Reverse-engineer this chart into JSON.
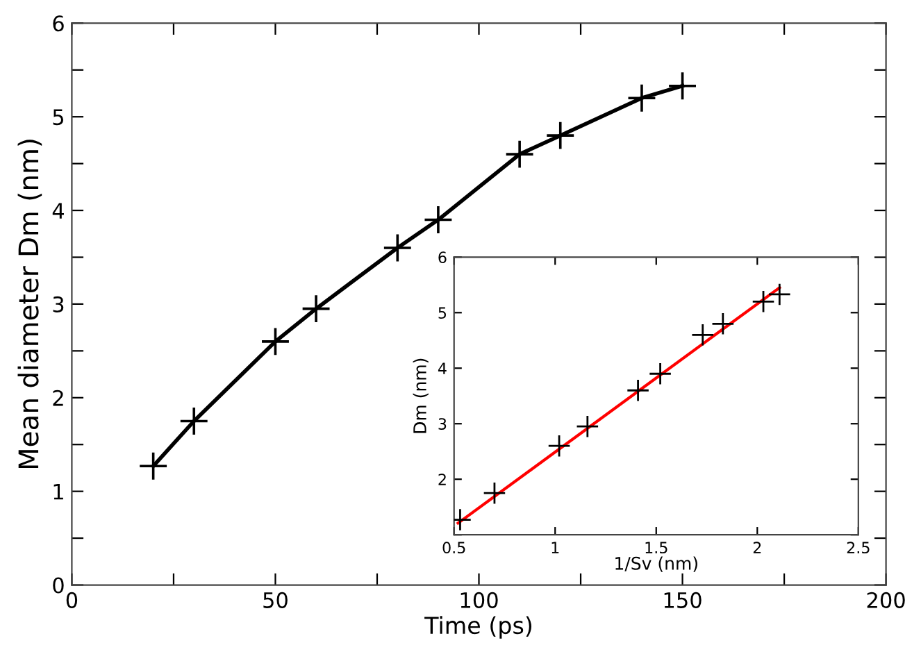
{
  "chart_data": [
    {
      "type": "line",
      "xlabel": "Time (ps)",
      "ylabel": "Mean diameter Dm (nm)",
      "marker": "cross",
      "line_style": "solid",
      "grid": false,
      "x": [
        20,
        30,
        50,
        60,
        80,
        90,
        110,
        120,
        140,
        150
      ],
      "series": [
        {
          "color": "#000000",
          "values": [
            1.27,
            1.75,
            2.6,
            2.95,
            3.6,
            3.9,
            4.6,
            4.8,
            5.2,
            5.33
          ]
        }
      ],
      "xlim": [
        0,
        200
      ],
      "xticks": [
        0,
        {
          "value": 25,
          "label": null
        },
        50,
        {
          "value": 75,
          "label": null
        },
        100,
        {
          "value": 125,
          "label": null
        },
        150,
        {
          "value": 175,
          "label": null
        },
        200
      ],
      "ylim": [
        0,
        6
      ],
      "yticks": [
        0,
        {
          "value": 0.5,
          "label": null
        },
        1,
        {
          "value": 1.5,
          "label": null
        },
        2,
        {
          "value": 2.5,
          "label": null
        },
        3,
        {
          "value": 3.5,
          "label": null
        },
        4,
        {
          "value": 4.5,
          "label": null
        },
        5,
        {
          "value": 5.5,
          "label": null
        },
        6
      ]
    },
    {
      "type": "scatter",
      "xlabel": "1/Sv (nm)",
      "ylabel": "Dm (nm)",
      "marker": "cross",
      "grid": false,
      "x": [
        0.53,
        0.7,
        1.02,
        1.16,
        1.41,
        1.52,
        1.73,
        1.83,
        2.03,
        2.11
      ],
      "series": [
        {
          "color": "#000000",
          "values": [
            1.27,
            1.75,
            2.6,
            2.95,
            3.6,
            3.9,
            4.6,
            4.8,
            5.2,
            5.33
          ]
        },
        {
          "type": "line",
          "marker": "none",
          "color": "#ff0000",
          "x": [
            0.52,
            2.11
          ],
          "values": [
            1.21,
            5.45
          ]
        }
      ],
      "xlim": [
        0.5,
        2.5
      ],
      "xticks": [
        0.5,
        1,
        1.5,
        2,
        2.5
      ],
      "ylim": [
        1,
        6
      ],
      "yticks": [
        {
          "value": 1,
          "label": null
        },
        2,
        3,
        4,
        5,
        6
      ]
    }
  ]
}
